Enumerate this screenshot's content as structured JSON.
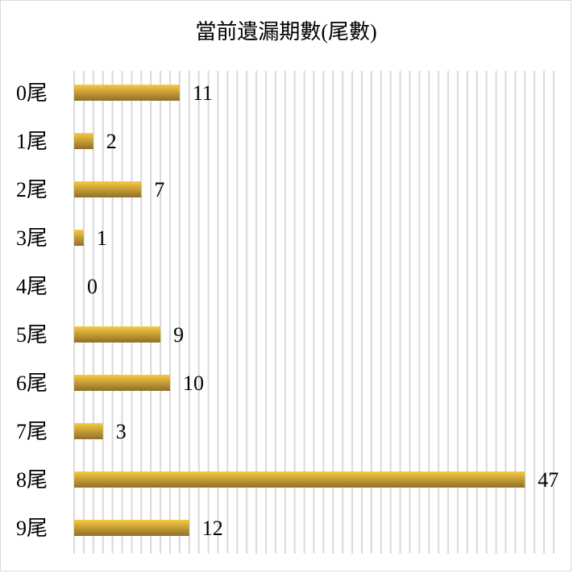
{
  "chart_data": {
    "type": "bar",
    "orientation": "horizontal",
    "title": "當前遺漏期數(尾數)",
    "categories": [
      "0尾",
      "1尾",
      "2尾",
      "3尾",
      "4尾",
      "5尾",
      "6尾",
      "7尾",
      "8尾",
      "9尾"
    ],
    "values": [
      11,
      2,
      7,
      1,
      0,
      9,
      10,
      3,
      47,
      12
    ],
    "xlim": [
      0,
      50
    ],
    "grid": "vertical, every 1 unit",
    "data_labels": true,
    "legend": "none",
    "colors": {
      "bar_top": "#f9c942",
      "bar_bottom": "#8f7029",
      "grid": "#d9d9d9",
      "border": "#d9d9d9"
    }
  }
}
